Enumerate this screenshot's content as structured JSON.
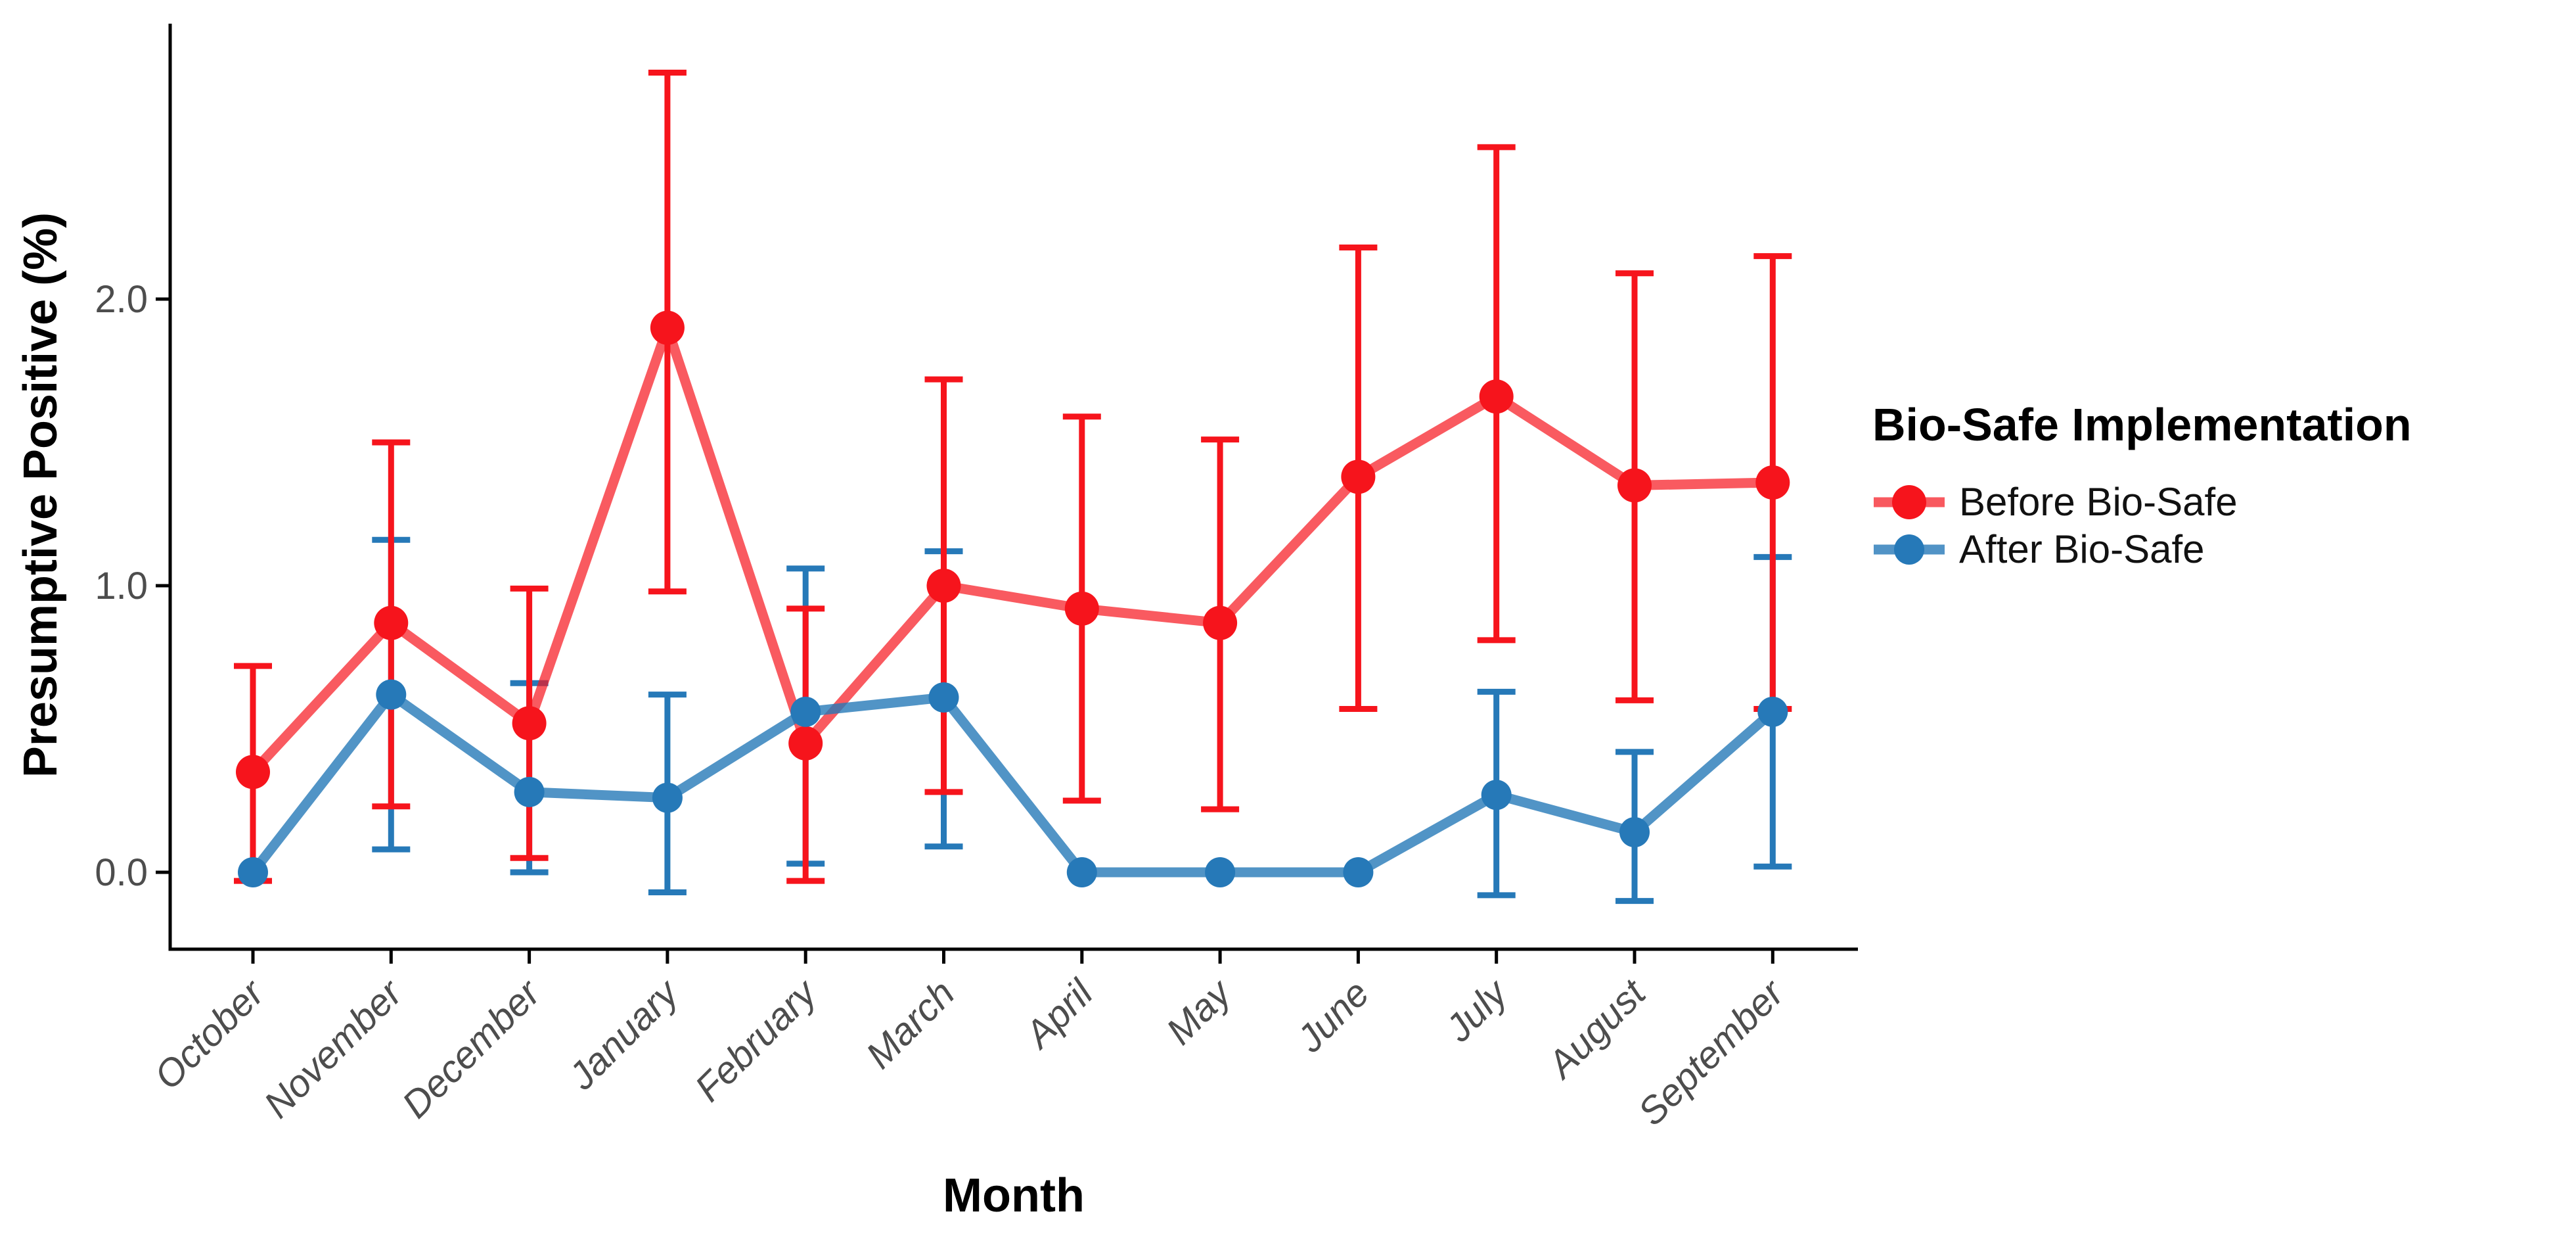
{
  "chart_data": {
    "type": "line",
    "title": "",
    "xlabel": "Month",
    "ylabel": "Presumptive Positive (%)",
    "categories": [
      "October",
      "November",
      "December",
      "January",
      "February",
      "March",
      "April",
      "May",
      "June",
      "July",
      "August",
      "September"
    ],
    "x_labels_style": "italic, rotated 45 degrees",
    "y_ticks": {
      "values": [
        0.0,
        1.0,
        2.0
      ],
      "labels": [
        "0.0",
        "1.0",
        "2.0"
      ]
    },
    "ylim": [
      -0.27,
      2.96
    ],
    "grid": false,
    "plot_background": "#FFFFFF",
    "axis_color": "#000000",
    "tick_label_color": "#4D4D4D",
    "legend": {
      "title": "Bio-Safe Implementation",
      "position": "right"
    },
    "series": [
      {
        "name": "Before Bio-Safe",
        "color": "#F6141C",
        "line_opacity": 0.7,
        "point_radius": 26,
        "values": [
          0.35,
          0.87,
          0.52,
          1.9,
          0.45,
          1.0,
          0.92,
          0.87,
          1.38,
          1.66,
          1.35,
          1.36
        ],
        "err_low": [
          -0.03,
          0.23,
          0.05,
          0.98,
          -0.03,
          0.28,
          0.25,
          0.22,
          0.57,
          0.81,
          0.6,
          0.57
        ],
        "err_high": [
          0.72,
          1.5,
          0.99,
          2.79,
          0.92,
          1.72,
          1.59,
          1.51,
          2.18,
          2.53,
          2.09,
          2.15
        ]
      },
      {
        "name": "After Bio-Safe",
        "color": "#2679B8",
        "line_opacity": 0.8,
        "point_radius": 23,
        "values": [
          0.0,
          0.62,
          0.28,
          0.26,
          0.56,
          0.61,
          0.0,
          0.0,
          0.0,
          0.27,
          0.14,
          0.56
        ],
        "err_low": [
          null,
          0.08,
          0.0,
          -0.07,
          0.03,
          0.09,
          null,
          null,
          null,
          -0.08,
          -0.1,
          0.02
        ],
        "err_high": [
          null,
          1.16,
          0.66,
          0.62,
          1.06,
          1.12,
          null,
          null,
          null,
          0.63,
          0.42,
          1.1
        ]
      }
    ]
  }
}
